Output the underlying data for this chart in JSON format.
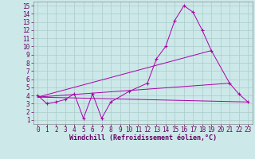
{
  "xlabel": "Windchill (Refroidissement éolien,°C)",
  "xlim": [
    0,
    23
  ],
  "ylim": [
    1,
    15
  ],
  "xticks": [
    0,
    1,
    2,
    3,
    4,
    5,
    6,
    7,
    8,
    9,
    10,
    11,
    12,
    13,
    14,
    15,
    16,
    17,
    18,
    19,
    20,
    21,
    22,
    23
  ],
  "yticks": [
    1,
    2,
    3,
    4,
    5,
    6,
    7,
    8,
    9,
    10,
    11,
    12,
    13,
    14,
    15
  ],
  "background_color": "#cce8e8",
  "grid_color": "#aacccc",
  "line_color": "#aa00aa",
  "series": [
    {
      "x": [
        0,
        1,
        2,
        3,
        4,
        5,
        6,
        7,
        8,
        10,
        12,
        13,
        14,
        15,
        16,
        17,
        18,
        19,
        21,
        22,
        23
      ],
      "y": [
        4.0,
        3.0,
        3.2,
        3.5,
        4.2,
        1.2,
        4.2,
        1.2,
        3.2,
        4.5,
        5.5,
        8.5,
        10.0,
        13.2,
        15.0,
        14.2,
        12.0,
        9.5,
        5.5,
        4.2,
        3.2
      ],
      "marker": true
    },
    {
      "x": [
        0,
        23
      ],
      "y": [
        3.8,
        3.2
      ],
      "marker": false
    },
    {
      "x": [
        0,
        19
      ],
      "y": [
        3.8,
        9.5
      ],
      "marker": false
    },
    {
      "x": [
        0,
        21
      ],
      "y": [
        3.8,
        5.5
      ],
      "marker": false
    }
  ]
}
